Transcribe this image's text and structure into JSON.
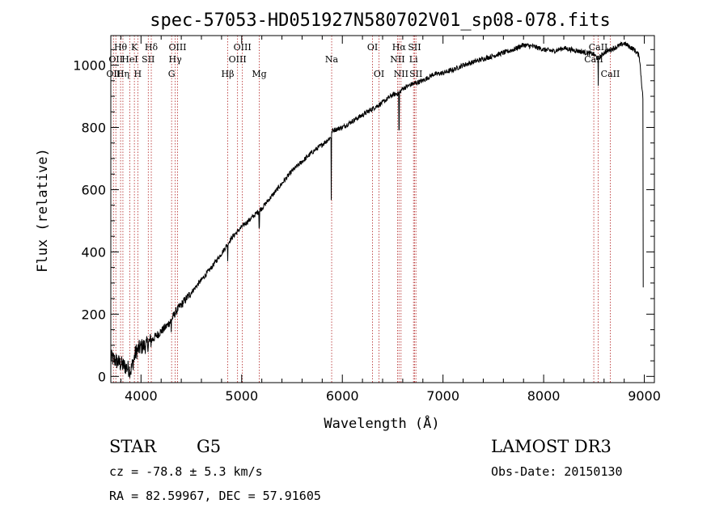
{
  "chart_data": {
    "type": "line",
    "title": "spec-57053-HD051927N580702V01_sp08-078.fits",
    "xlabel": "Wavelength (Å)",
    "ylabel": "Flux (relative)",
    "xlim": [
      3700,
      9100
    ],
    "ylim": [
      -20,
      1095
    ],
    "xticks": [
      4000,
      5000,
      6000,
      7000,
      8000,
      9000
    ],
    "yticks": [
      0,
      200,
      400,
      600,
      800,
      1000
    ],
    "series": [
      {
        "name": "flux",
        "x": [
          3700,
          3750,
          3800,
          3850,
          3900,
          3950,
          4000,
          4050,
          4100,
          4150,
          4200,
          4250,
          4300,
          4350,
          4400,
          4500,
          4600,
          4700,
          4800,
          4900,
          5000,
          5100,
          5200,
          5300,
          5400,
          5500,
          5600,
          5700,
          5800,
          5890,
          5900,
          6000,
          6100,
          6200,
          6300,
          6400,
          6500,
          6563,
          6600,
          6700,
          6800,
          6900,
          7000,
          7100,
          7200,
          7300,
          7400,
          7500,
          7600,
          7700,
          7800,
          7900,
          8000,
          8100,
          8200,
          8300,
          8400,
          8498,
          8542,
          8600,
          8662,
          8700,
          8800,
          8900,
          8950,
          8990
        ],
        "y": [
          60,
          50,
          40,
          30,
          20,
          80,
          95,
          100,
          115,
          130,
          145,
          160,
          180,
          210,
          230,
          270,
          310,
          350,
          395,
          445,
          480,
          510,
          540,
          580,
          620,
          660,
          690,
          720,
          745,
          770,
          790,
          800,
          820,
          840,
          860,
          880,
          905,
          910,
          925,
          940,
          950,
          970,
          975,
          985,
          1000,
          1010,
          1020,
          1030,
          1040,
          1050,
          1065,
          1060,
          1050,
          1045,
          1055,
          1048,
          1042,
          1035,
          1020,
          1040,
          1050,
          1055,
          1070,
          1050,
          1030,
          880
        ]
      }
    ],
    "absorption_dips": [
      {
        "x": 4300,
        "depth": 40
      },
      {
        "x": 4861,
        "depth": 60
      },
      {
        "x": 5175,
        "depth": 50
      },
      {
        "x": 5890,
        "depth": 200
      },
      {
        "x": 6563,
        "depth": 120
      },
      {
        "x": 8542,
        "depth": 90
      },
      {
        "x": 8990,
        "depth": 600
      }
    ],
    "lines": [
      {
        "x": 3726,
        "label": "OII",
        "row": 3
      },
      {
        "x": 3750,
        "label": "OII",
        "row": 2
      },
      {
        "x": 3797,
        "label": "Hθ",
        "row": 1
      },
      {
        "x": 3820,
        "label": "Hη",
        "row": 3
      },
      {
        "x": 3889,
        "label": "HeI",
        "row": 2
      },
      {
        "x": 3934,
        "label": "K",
        "row": 1
      },
      {
        "x": 3968,
        "label": "H",
        "row": 3
      },
      {
        "x": 4072,
        "label": "SII",
        "row": 2
      },
      {
        "x": 4102,
        "label": "Hδ",
        "row": 1
      },
      {
        "x": 4304,
        "label": "G",
        "row": 3
      },
      {
        "x": 4340,
        "label": "Hγ",
        "row": 2
      },
      {
        "x": 4363,
        "label": "OIII",
        "row": 1
      },
      {
        "x": 4861,
        "label": "Hβ",
        "row": 3
      },
      {
        "x": 4959,
        "label": "OIII",
        "row": 2
      },
      {
        "x": 5007,
        "label": "OIII",
        "row": 1
      },
      {
        "x": 5175,
        "label": "Mg",
        "row": 3
      },
      {
        "x": 5894,
        "label": "Na",
        "row": 2
      },
      {
        "x": 6300,
        "label": "OI",
        "row": 1
      },
      {
        "x": 6364,
        "label": "OI",
        "row": 3
      },
      {
        "x": 6548,
        "label": "NII",
        "row": 2
      },
      {
        "x": 6563,
        "label": "Hα",
        "row": 1
      },
      {
        "x": 6583,
        "label": "NII",
        "row": 3
      },
      {
        "x": 6717,
        "label": "SII",
        "row": 1
      },
      {
        "x": 6707,
        "label": "Li",
        "row": 2
      },
      {
        "x": 6731,
        "label": "SII",
        "row": 3
      },
      {
        "x": 8498,
        "label": "CaII",
        "row": 2
      },
      {
        "x": 8542,
        "label": "CaII",
        "row": 1
      },
      {
        "x": 8662,
        "label": "CaII",
        "row": 3
      }
    ]
  },
  "info": {
    "object_class": "STAR",
    "subclass": "G5",
    "survey": "LAMOST DR3",
    "cz": "cz = -78.8 ± 5.3 km/s",
    "obs_date": "Obs-Date: 20150130",
    "coords": "RA =  82.59967, DEC =  57.91605"
  },
  "colors": {
    "line_marker": "#b22222",
    "spectrum": "#000000"
  }
}
